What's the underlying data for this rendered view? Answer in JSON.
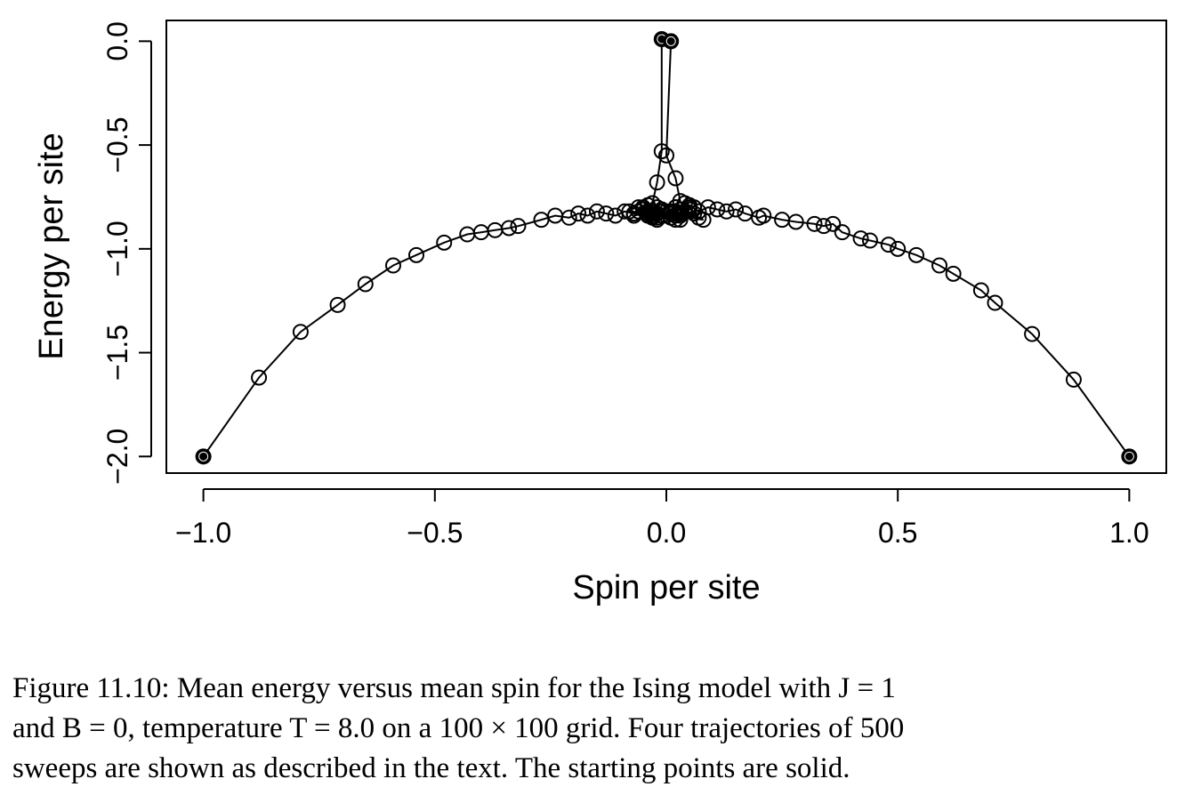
{
  "chart_data": {
    "type": "scatter",
    "title": "",
    "xlabel": "Spin per site",
    "ylabel": "Energy per site",
    "xlim": [
      -1.08,
      1.08
    ],
    "ylim": [
      -2.08,
      0.1
    ],
    "xticks": [
      -1.0,
      -0.5,
      0.0,
      0.5,
      1.0
    ],
    "xtick_labels": [
      "−1.0",
      "−0.5",
      "0.0",
      "0.5",
      "1.0"
    ],
    "yticks": [
      0.0,
      -0.5,
      -1.0,
      -1.5,
      -2.0
    ],
    "ytick_labels": [
      "0.0",
      "−0.5",
      "−1.0",
      "−1.5",
      "−2.0"
    ],
    "grid": false,
    "legend": "none",
    "markers": "open circles joined by lines; starting points solid",
    "series": [
      {
        "start": "solid",
        "points": [
          [
            -1.0,
            -2.0
          ],
          [
            -0.88,
            -1.62
          ],
          [
            -0.79,
            -1.4
          ],
          [
            -0.71,
            -1.27
          ],
          [
            -0.65,
            -1.17
          ],
          [
            -0.59,
            -1.08
          ],
          [
            -0.54,
            -1.03
          ],
          [
            -0.48,
            -0.97
          ],
          [
            -0.43,
            -0.93
          ],
          [
            -0.4,
            -0.92
          ],
          [
            -0.37,
            -0.91
          ],
          [
            -0.34,
            -0.9
          ],
          [
            -0.32,
            -0.89
          ],
          [
            -0.27,
            -0.86
          ],
          [
            -0.24,
            -0.84
          ],
          [
            -0.21,
            -0.85
          ],
          [
            -0.19,
            -0.83
          ],
          [
            -0.17,
            -0.84
          ],
          [
            -0.15,
            -0.82
          ],
          [
            -0.13,
            -0.83
          ],
          [
            -0.11,
            -0.84
          ],
          [
            -0.09,
            -0.82
          ],
          [
            -0.07,
            -0.83
          ],
          [
            -0.05,
            -0.81
          ],
          [
            -0.03,
            -0.84
          ],
          [
            -0.01,
            -0.82
          ],
          [
            0.01,
            -0.83
          ],
          [
            -0.02,
            -0.85
          ],
          [
            0.02,
            -0.82
          ],
          [
            -0.04,
            -0.83
          ],
          [
            0.0,
            -0.84
          ]
        ]
      },
      {
        "start": "solid",
        "points": [
          [
            1.0,
            -2.0
          ],
          [
            0.88,
            -1.63
          ],
          [
            0.79,
            -1.41
          ],
          [
            0.71,
            -1.26
          ],
          [
            0.68,
            -1.2
          ],
          [
            0.62,
            -1.12
          ],
          [
            0.59,
            -1.08
          ],
          [
            0.54,
            -1.03
          ],
          [
            0.5,
            -1.0
          ],
          [
            0.48,
            -0.98
          ],
          [
            0.44,
            -0.96
          ],
          [
            0.42,
            -0.95
          ],
          [
            0.38,
            -0.92
          ],
          [
            0.36,
            -0.88
          ],
          [
            0.34,
            -0.89
          ],
          [
            0.32,
            -0.88
          ],
          [
            0.28,
            -0.87
          ],
          [
            0.25,
            -0.86
          ],
          [
            0.21,
            -0.84
          ],
          [
            0.2,
            -0.85
          ],
          [
            0.17,
            -0.83
          ],
          [
            0.15,
            -0.81
          ],
          [
            0.13,
            -0.82
          ],
          [
            0.11,
            -0.81
          ],
          [
            0.09,
            -0.8
          ],
          [
            0.07,
            -0.82
          ],
          [
            0.05,
            -0.79
          ],
          [
            0.03,
            -0.81
          ],
          [
            0.01,
            -0.83
          ],
          [
            0.02,
            -0.8
          ],
          [
            0.0,
            -0.82
          ]
        ]
      },
      {
        "start": "solid",
        "points": [
          [
            -0.01,
            0.01
          ],
          [
            -0.01,
            -0.53
          ],
          [
            -0.02,
            -0.68
          ],
          [
            -0.03,
            -0.78
          ],
          [
            -0.02,
            -0.8
          ],
          [
            -0.04,
            -0.82
          ],
          [
            -0.01,
            -0.84
          ],
          [
            -0.05,
            -0.81
          ],
          [
            -0.03,
            -0.83
          ],
          [
            -0.06,
            -0.82
          ],
          [
            -0.02,
            -0.86
          ],
          [
            -0.04,
            -0.79
          ],
          [
            -0.07,
            -0.84
          ],
          [
            -0.01,
            -0.81
          ],
          [
            -0.03,
            -0.85
          ],
          [
            -0.05,
            -0.8
          ],
          [
            -0.02,
            -0.83
          ],
          [
            -0.08,
            -0.82
          ],
          [
            -0.04,
            -0.84
          ],
          [
            -0.06,
            -0.8
          ],
          [
            -0.03,
            -0.82
          ]
        ]
      },
      {
        "start": "solid",
        "points": [
          [
            0.01,
            0.0
          ],
          [
            0.0,
            -0.55
          ],
          [
            0.02,
            -0.66
          ],
          [
            0.03,
            -0.77
          ],
          [
            0.02,
            -0.8
          ],
          [
            0.04,
            -0.82
          ],
          [
            0.01,
            -0.85
          ],
          [
            0.05,
            -0.8
          ],
          [
            0.03,
            -0.84
          ],
          [
            0.06,
            -0.83
          ],
          [
            0.02,
            -0.86
          ],
          [
            0.04,
            -0.78
          ],
          [
            0.07,
            -0.85
          ],
          [
            0.01,
            -0.82
          ],
          [
            0.03,
            -0.86
          ],
          [
            0.05,
            -0.81
          ],
          [
            0.02,
            -0.84
          ],
          [
            0.08,
            -0.86
          ],
          [
            0.04,
            -0.82
          ],
          [
            0.06,
            -0.8
          ],
          [
            0.03,
            -0.83
          ]
        ]
      }
    ]
  },
  "caption": {
    "line1": "Figure 11.10: Mean energy versus mean spin for the Ising model with J = 1",
    "line2": "and B = 0, temperature T = 8.0 on a 100 × 100 grid. Four trajectories of 500",
    "line3": "sweeps are shown as described in the text. The starting points are solid."
  }
}
